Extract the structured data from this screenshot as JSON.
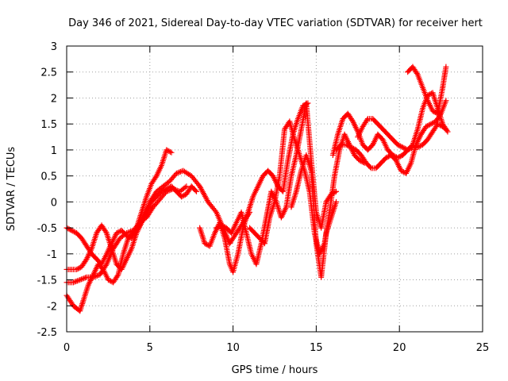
{
  "chart_data": {
    "type": "scatter",
    "title": "Day 346 of 2021, Sidereal Day-to-day VTEC variation (SDTVAR) for receiver hert",
    "xlabel": "GPS time / hours",
    "ylabel": "SDTVAR / TECUs",
    "xlim": [
      0,
      25
    ],
    "ylim": [
      -2.5,
      3
    ],
    "xticks": [
      0,
      5,
      10,
      15,
      20,
      25
    ],
    "yticks": [
      -2.5,
      -2,
      -1.5,
      -1,
      -0.5,
      0,
      0.5,
      1,
      1.5,
      2,
      2.5,
      3
    ],
    "grid": true,
    "marker": "+",
    "color": "#ff0000",
    "series": [
      {
        "x": [
          0.0,
          0.3,
          0.6,
          0.9,
          1.2,
          1.5,
          1.8,
          2.1,
          2.4,
          2.7,
          3.0,
          3.3,
          3.6,
          3.9,
          4.2,
          4.5,
          4.8,
          5.1,
          5.4,
          5.7,
          6.0,
          6.3
        ],
        "y": [
          -0.5,
          -0.55,
          -0.6,
          -0.7,
          -0.85,
          -1.0,
          -1.1,
          -1.2,
          -1.0,
          -0.8,
          -0.6,
          -0.55,
          -0.65,
          -0.7,
          -0.5,
          -0.2,
          0.1,
          0.35,
          0.5,
          0.7,
          1.0,
          0.95
        ]
      },
      {
        "x": [
          0.0,
          0.2,
          0.4,
          0.6,
          0.8,
          1.0,
          1.3,
          1.6,
          1.9,
          2.2,
          2.5,
          2.8,
          3.1,
          3.4,
          3.7,
          4.0,
          4.3,
          4.6,
          5.0,
          5.4,
          5.8,
          6.2,
          6.6,
          7.0,
          7.5,
          8.0,
          8.5,
          9.0,
          9.4,
          9.8,
          10.2,
          10.6,
          11.0
        ],
        "y": [
          -1.8,
          -1.9,
          -2.0,
          -2.05,
          -2.1,
          -1.9,
          -1.6,
          -1.4,
          -1.2,
          -1.3,
          -1.5,
          -1.55,
          -1.4,
          -1.0,
          -0.7,
          -0.6,
          -0.5,
          -0.3,
          0.0,
          0.2,
          0.3,
          0.4,
          0.55,
          0.6,
          0.5,
          0.3,
          0.0,
          -0.2,
          -0.5,
          -0.8,
          -0.6,
          -0.4,
          -0.2
        ]
      },
      {
        "x": [
          0.0,
          0.3,
          0.6,
          0.9,
          1.2,
          1.5,
          1.8,
          2.1,
          2.4,
          2.7,
          3.0,
          3.3,
          3.6,
          3.9,
          4.2,
          4.5,
          4.8,
          5.1,
          5.4,
          5.7,
          6.0,
          6.3,
          6.6,
          6.9,
          7.2,
          7.5,
          7.8
        ],
        "y": [
          -1.3,
          -1.3,
          -1.3,
          -1.25,
          -1.1,
          -0.9,
          -0.6,
          -0.45,
          -0.6,
          -0.9,
          -1.2,
          -1.3,
          -1.1,
          -0.9,
          -0.6,
          -0.4,
          -0.2,
          0.0,
          0.1,
          0.2,
          0.25,
          0.3,
          0.2,
          0.1,
          0.15,
          0.3,
          0.2
        ]
      },
      {
        "x": [
          0.0,
          0.4,
          0.8,
          1.2,
          1.6,
          2.0,
          2.4,
          2.8,
          3.2,
          3.6,
          4.0,
          4.4,
          4.8,
          5.2,
          5.6,
          6.0,
          6.4,
          6.8,
          7.2
        ],
        "y": [
          -1.55,
          -1.55,
          -1.5,
          -1.45,
          -1.45,
          -1.4,
          -1.2,
          -0.9,
          -0.7,
          -0.6,
          -0.55,
          -0.4,
          -0.3,
          -0.1,
          0.05,
          0.2,
          0.25,
          0.2,
          0.3
        ]
      },
      {
        "x": [
          8.0,
          8.3,
          8.6,
          8.9,
          9.2,
          9.5,
          9.8,
          10.0,
          10.3,
          10.6,
          10.9,
          11.2,
          11.5,
          11.8,
          12.1,
          12.4,
          12.7,
          13.0,
          13.3,
          13.6,
          13.9,
          14.2,
          14.5
        ],
        "y": [
          -0.5,
          -0.8,
          -0.85,
          -0.6,
          -0.4,
          -0.7,
          -1.2,
          -1.35,
          -1.0,
          -0.5,
          -0.2,
          0.1,
          0.3,
          0.5,
          0.6,
          0.5,
          0.3,
          0.2,
          0.8,
          1.3,
          1.6,
          1.85,
          1.9
        ]
      },
      {
        "x": [
          9.0,
          9.3,
          9.6,
          9.9,
          10.2,
          10.5,
          10.8,
          11.1,
          11.4,
          11.7,
          12.0,
          12.3,
          12.6,
          12.9,
          13.2,
          13.5,
          13.8,
          14.1,
          14.4,
          14.7,
          15.0,
          15.3,
          15.6,
          15.9,
          16.2
        ],
        "y": [
          -0.5,
          -0.45,
          -0.5,
          -0.6,
          -0.4,
          -0.2,
          -0.6,
          -1.0,
          -1.2,
          -0.8,
          -0.3,
          0.2,
          0.0,
          -0.3,
          -0.1,
          0.5,
          0.9,
          1.4,
          1.9,
          0.8,
          -0.2,
          -0.5,
          0.0,
          0.15,
          0.2
        ]
      },
      {
        "x": [
          11.0,
          11.3,
          11.6,
          11.9,
          12.2,
          12.5,
          12.8,
          13.1,
          13.4,
          13.7,
          14.0,
          14.3,
          14.6,
          14.9,
          15.2,
          15.5,
          15.8,
          16.1,
          16.4,
          16.7,
          17.0,
          17.3,
          17.6,
          17.9
        ],
        "y": [
          -0.5,
          -0.6,
          -0.7,
          -0.8,
          -0.3,
          0.0,
          0.5,
          1.4,
          1.55,
          1.2,
          0.9,
          0.6,
          0.2,
          -0.6,
          -1.0,
          -0.8,
          -0.2,
          0.5,
          1.0,
          1.3,
          1.1,
          0.9,
          0.8,
          0.75
        ]
      },
      {
        "x": [
          13.5,
          13.8,
          14.1,
          14.4,
          14.7,
          15.0,
          15.3,
          15.6,
          15.9,
          16.2
        ],
        "y": [
          -0.1,
          0.2,
          0.6,
          0.9,
          0.6,
          -0.8,
          -1.45,
          -0.6,
          -0.3,
          0.0
        ]
      },
      {
        "x": [
          16.0,
          16.3,
          16.6,
          16.9,
          17.2,
          17.5,
          17.8,
          18.1,
          18.4,
          18.7,
          19.0,
          19.3,
          19.6,
          19.9,
          20.2,
          20.5,
          20.8,
          21.1,
          21.4,
          21.7,
          22.0,
          22.3,
          22.6,
          22.8
        ],
        "y": [
          0.9,
          1.3,
          1.6,
          1.7,
          1.55,
          1.35,
          1.1,
          1.0,
          1.1,
          1.3,
          1.2,
          1.0,
          0.9,
          0.85,
          0.9,
          1.0,
          1.05,
          1.05,
          1.1,
          1.2,
          1.35,
          1.5,
          1.45,
          1.4
        ]
      },
      {
        "x": [
          16.2,
          16.5,
          16.8,
          17.1,
          17.4,
          17.7,
          18.0,
          18.3,
          18.6,
          18.9,
          19.2,
          19.5,
          19.8,
          20.1,
          20.4,
          20.7,
          21.0,
          21.3,
          21.6,
          21.9,
          22.2,
          22.5,
          22.8
        ],
        "y": [
          1.0,
          1.1,
          1.1,
          1.05,
          1.0,
          0.9,
          0.75,
          0.65,
          0.65,
          0.75,
          0.85,
          0.9,
          0.8,
          0.6,
          0.55,
          0.75,
          1.1,
          1.3,
          1.45,
          1.5,
          1.55,
          1.7,
          1.95
        ]
      },
      {
        "x": [
          17.5,
          17.8,
          18.1,
          18.4,
          18.7,
          19.0,
          19.3,
          19.6,
          19.9,
          20.2,
          20.5,
          20.8,
          21.1,
          21.4,
          21.7,
          22.0,
          22.3,
          22.6,
          22.9
        ],
        "y": [
          1.25,
          1.45,
          1.6,
          1.6,
          1.5,
          1.4,
          1.3,
          1.2,
          1.1,
          1.05,
          1.0,
          1.1,
          1.4,
          1.8,
          2.05,
          2.1,
          1.8,
          1.5,
          1.35
        ]
      },
      {
        "x": [
          20.5,
          20.8,
          21.1,
          21.4,
          21.7,
          22.0,
          22.3,
          22.6,
          22.8
        ],
        "y": [
          2.5,
          2.6,
          2.45,
          2.2,
          1.95,
          1.75,
          1.7,
          2.2,
          2.6
        ]
      }
    ]
  }
}
